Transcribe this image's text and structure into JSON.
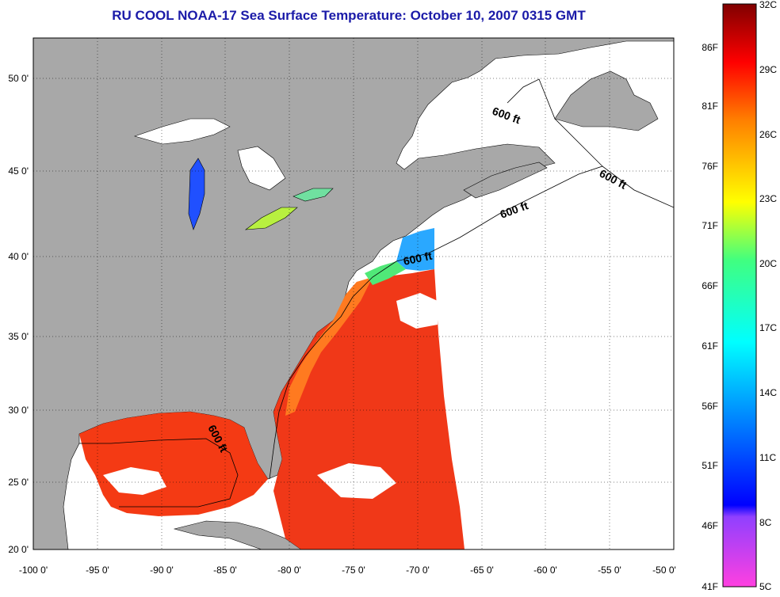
{
  "title": "RU COOL  NOAA-17  Sea Surface Temperature:  October 10, 2007 0315 GMT",
  "colors": {
    "land": "#a8a8a8",
    "no_data": "#ffffff",
    "warm_water": "#ff3010",
    "title_blue": "#1a1aa8"
  },
  "axes": {
    "x_ticks": [
      "-100 0'",
      "-95 0'",
      "-90 0'",
      "-85 0'",
      "-80 0'",
      "-75 0'",
      "-70 0'",
      "-65 0'",
      "-60 0'",
      "-55 0'",
      "-50 0'"
    ],
    "y_ticks": [
      "50 0'",
      "45 0'",
      "40 0'",
      "35 0'",
      "30 0'",
      "25 0'",
      "20 0'"
    ],
    "lon_range": [
      -100,
      -50
    ],
    "lat_range": [
      20,
      52.5
    ],
    "grid": "dotted"
  },
  "contour_labels": [
    "600 ft",
    "600 ft",
    "600 ft",
    "600 ft",
    "600 ft"
  ],
  "colorbar": {
    "fahrenheit": [
      "86F",
      "81F",
      "76F",
      "71F",
      "66F",
      "61F",
      "56F",
      "51F",
      "46F",
      "41F"
    ],
    "celsius": [
      "32C",
      "29C",
      "26C",
      "23C",
      "20C",
      "17C",
      "14C",
      "11C",
      "8C",
      "5C"
    ]
  }
}
